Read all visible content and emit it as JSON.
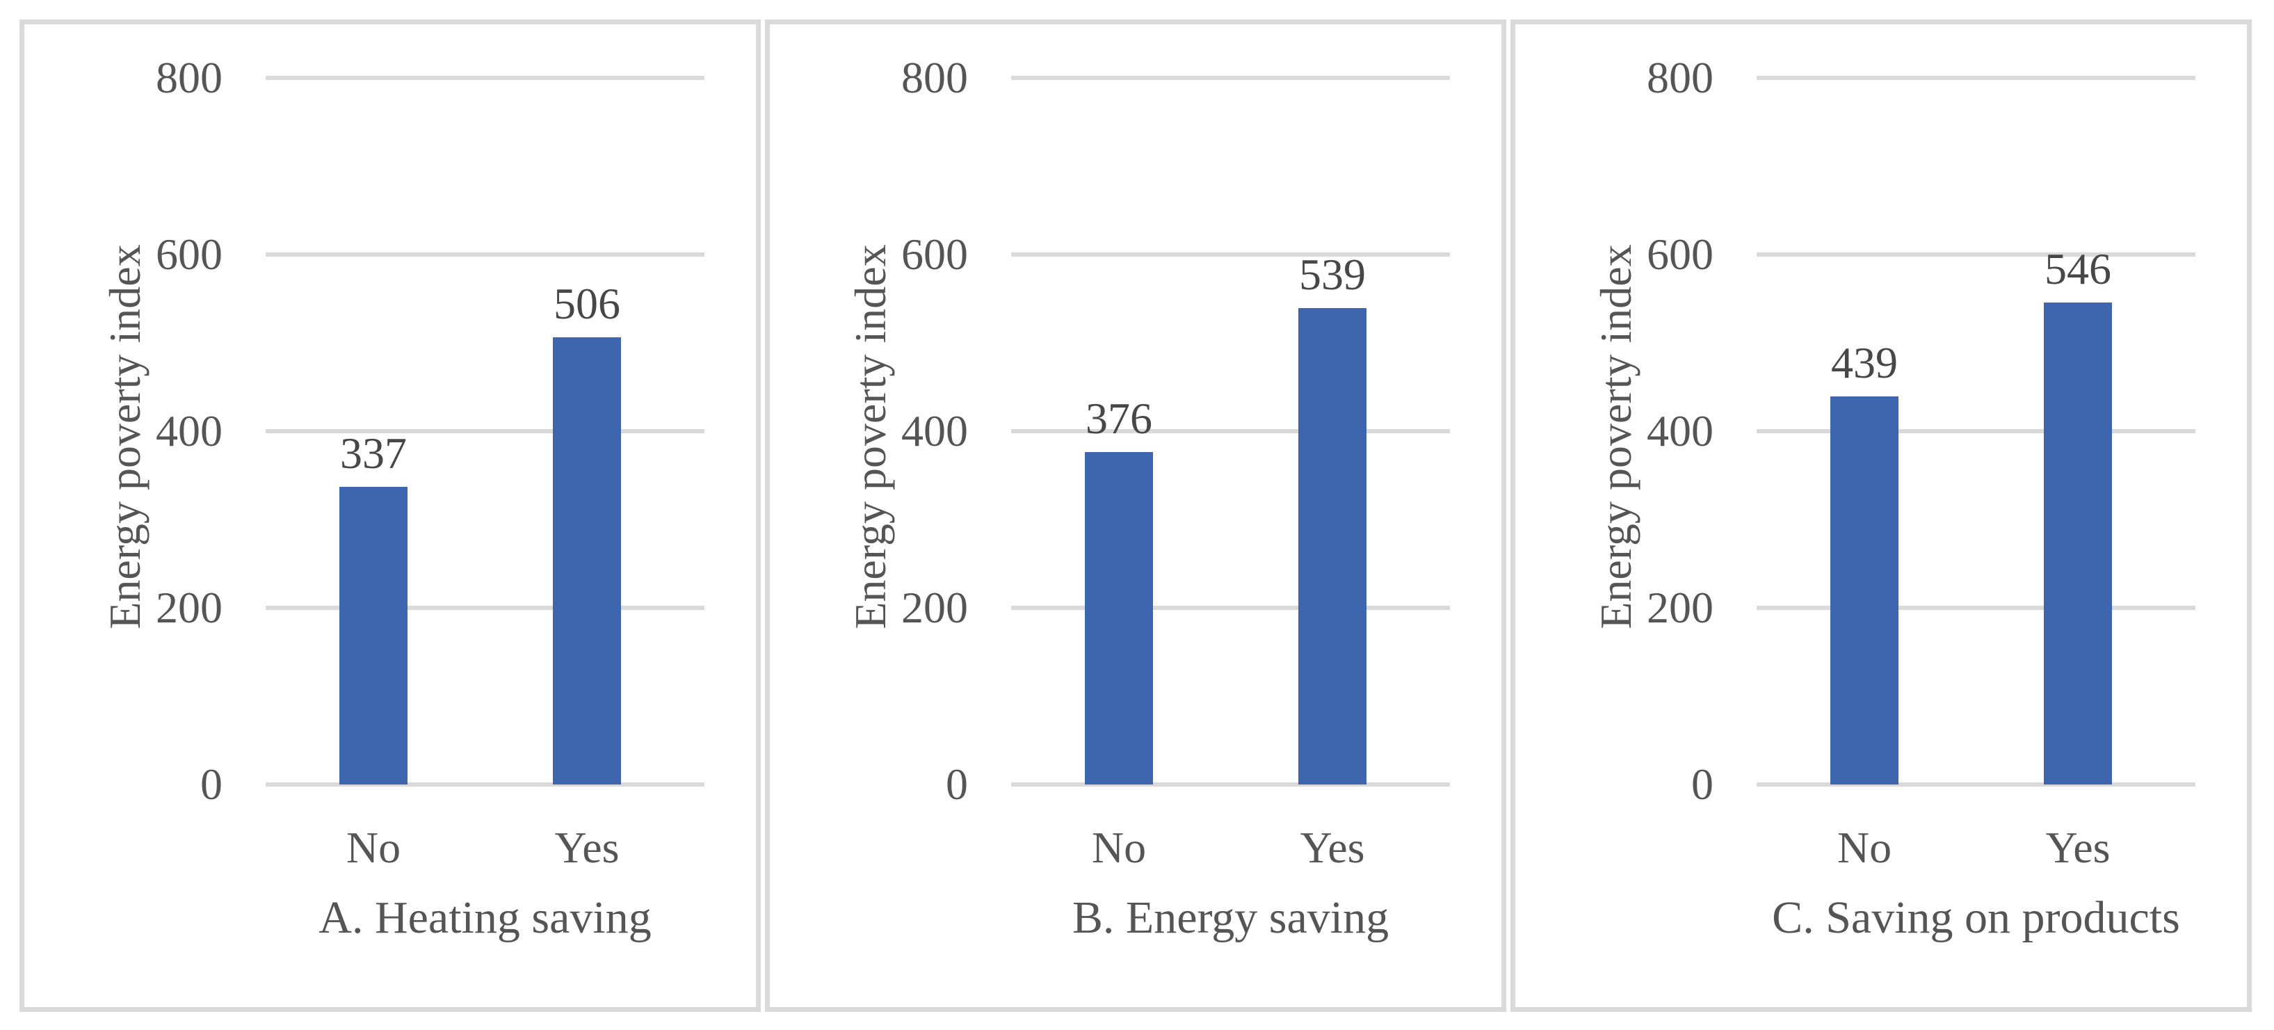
{
  "figure": {
    "ylabel": "Energy poverty index",
    "yticks": [
      "800",
      "600",
      "400",
      "200",
      "0"
    ],
    "categories": [
      "No",
      "Yes"
    ]
  },
  "chart_data": [
    {
      "type": "bar",
      "title": "A. Heating saving",
      "categories": [
        "No",
        "Yes"
      ],
      "values": [
        337,
        506
      ],
      "ylabel": "Energy poverty index",
      "ylim": [
        0,
        800
      ],
      "ytick_step": 200,
      "grid": "horizontal",
      "legend": "none"
    },
    {
      "type": "bar",
      "title": "B. Energy saving",
      "categories": [
        "No",
        "Yes"
      ],
      "values": [
        376,
        539
      ],
      "ylabel": "Energy poverty index",
      "ylim": [
        0,
        800
      ],
      "ytick_step": 200,
      "grid": "horizontal",
      "legend": "none"
    },
    {
      "type": "bar",
      "title": "C. Saving on products",
      "categories": [
        "No",
        "Yes"
      ],
      "values": [
        439,
        546
      ],
      "ylabel": "Energy poverty index",
      "ylim": [
        0,
        800
      ],
      "ytick_step": 200,
      "grid": "horizontal",
      "legend": "none"
    }
  ],
  "colors": {
    "bar": "#3E66AE",
    "gridline": "#D9D9D9",
    "panel_border": "#DADADA",
    "text": "#555555",
    "value_label": "#474747",
    "background": "#FFFFFF"
  }
}
